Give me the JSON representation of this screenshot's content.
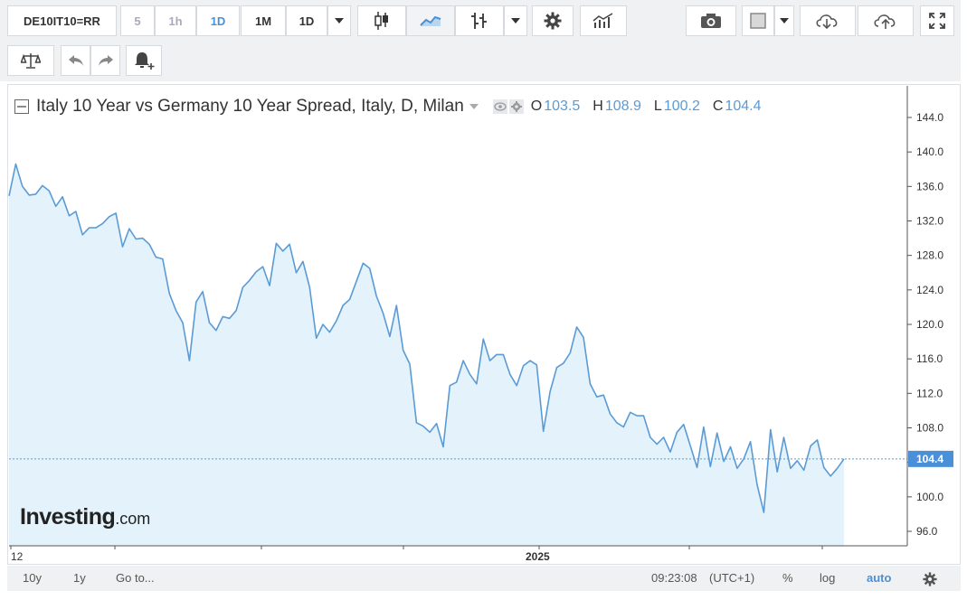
{
  "toolbar": {
    "symbol": "DE10IT10=RR",
    "intervals": [
      "5",
      "1h",
      "1D",
      "1M",
      "1D"
    ]
  },
  "legend": {
    "title": "Italy 10 Year vs Germany 10 Year Spread, Italy, D, Milan",
    "open_label": "O",
    "open": "103.5",
    "high_label": "H",
    "high": "108.9",
    "low_label": "L",
    "low": "100.2",
    "close_label": "C",
    "close": "104.4"
  },
  "branding": {
    "logo_main": "Investing",
    "logo_suffix": ".com"
  },
  "bottom_bar": {
    "range_10y": "10y",
    "range_1y": "1y",
    "goto": "Go to...",
    "clock": "09:23:08",
    "timezone": "(UTC+1)",
    "percent": "%",
    "log": "log",
    "auto": "auto"
  },
  "colors": {
    "line": "#5b9bd5",
    "fill": "#e3f2fb",
    "accent": "#4a90d9"
  },
  "chart_data": {
    "type": "area",
    "title": "Italy 10 Year vs Germany 10 Year Spread, Italy, D, Milan",
    "ylim": [
      94,
      146
    ],
    "y_ticks": [
      96.0,
      100.0,
      104.0,
      108.0,
      112.0,
      116.0,
      120.0,
      124.0,
      128.0,
      132.0,
      136.0,
      140.0,
      144.0
    ],
    "y_tick_labels": [
      "96.0",
      "100.0",
      "",
      "108.0",
      "112.0",
      "116.0",
      "120.0",
      "124.0",
      "128.0",
      "132.0",
      "136.0",
      "140.0",
      "144.0"
    ],
    "x_tick_labels": [
      "12",
      "",
      "",
      "",
      "2025",
      "",
      ""
    ],
    "current_value": 104.4,
    "current_label": "104.4",
    "series": [
      {
        "values": [
          134.9,
          138.6,
          136.0,
          135.0,
          135.1,
          136.1,
          135.5,
          133.7,
          134.8,
          132.6,
          133.1,
          130.4,
          131.2,
          131.2,
          131.7,
          132.5,
          132.9,
          129.0,
          131.1,
          129.9,
          130.0,
          129.3,
          127.8,
          127.6,
          123.6,
          121.6,
          120.2,
          115.8,
          122.6,
          123.8,
          120.2,
          119.3,
          120.9,
          120.7,
          121.6,
          124.3,
          125.1,
          126.1,
          126.7,
          124.5,
          129.4,
          128.5,
          129.3,
          126.0,
          127.3,
          124.3,
          118.4,
          120.0,
          119.1,
          120.4,
          122.2,
          122.9,
          125.0,
          127.1,
          126.5,
          123.3,
          121.3,
          118.6,
          122.2,
          117.0,
          115.4,
          108.6,
          108.2,
          107.5,
          108.5,
          105.8,
          112.9,
          113.3,
          115.8,
          114.2,
          113.1,
          118.3,
          115.8,
          116.5,
          116.5,
          114.2,
          112.9,
          115.2,
          115.8,
          115.3,
          107.6,
          112.2,
          115.0,
          115.5,
          116.7,
          119.7,
          118.5,
          113.1,
          111.6,
          111.8,
          109.6,
          108.6,
          108.1,
          109.8,
          109.4,
          109.4,
          106.9,
          106.1,
          106.9,
          105.2,
          107.5,
          108.4,
          105.9,
          103.4,
          108.1,
          103.5,
          107.4,
          104.1,
          105.8,
          103.3,
          104.4,
          106.4,
          101.4,
          98.2,
          107.8,
          102.9,
          106.9,
          103.3,
          104.2,
          103.1,
          105.9,
          106.6,
          103.4,
          102.4,
          103.3,
          104.4
        ]
      }
    ]
  }
}
